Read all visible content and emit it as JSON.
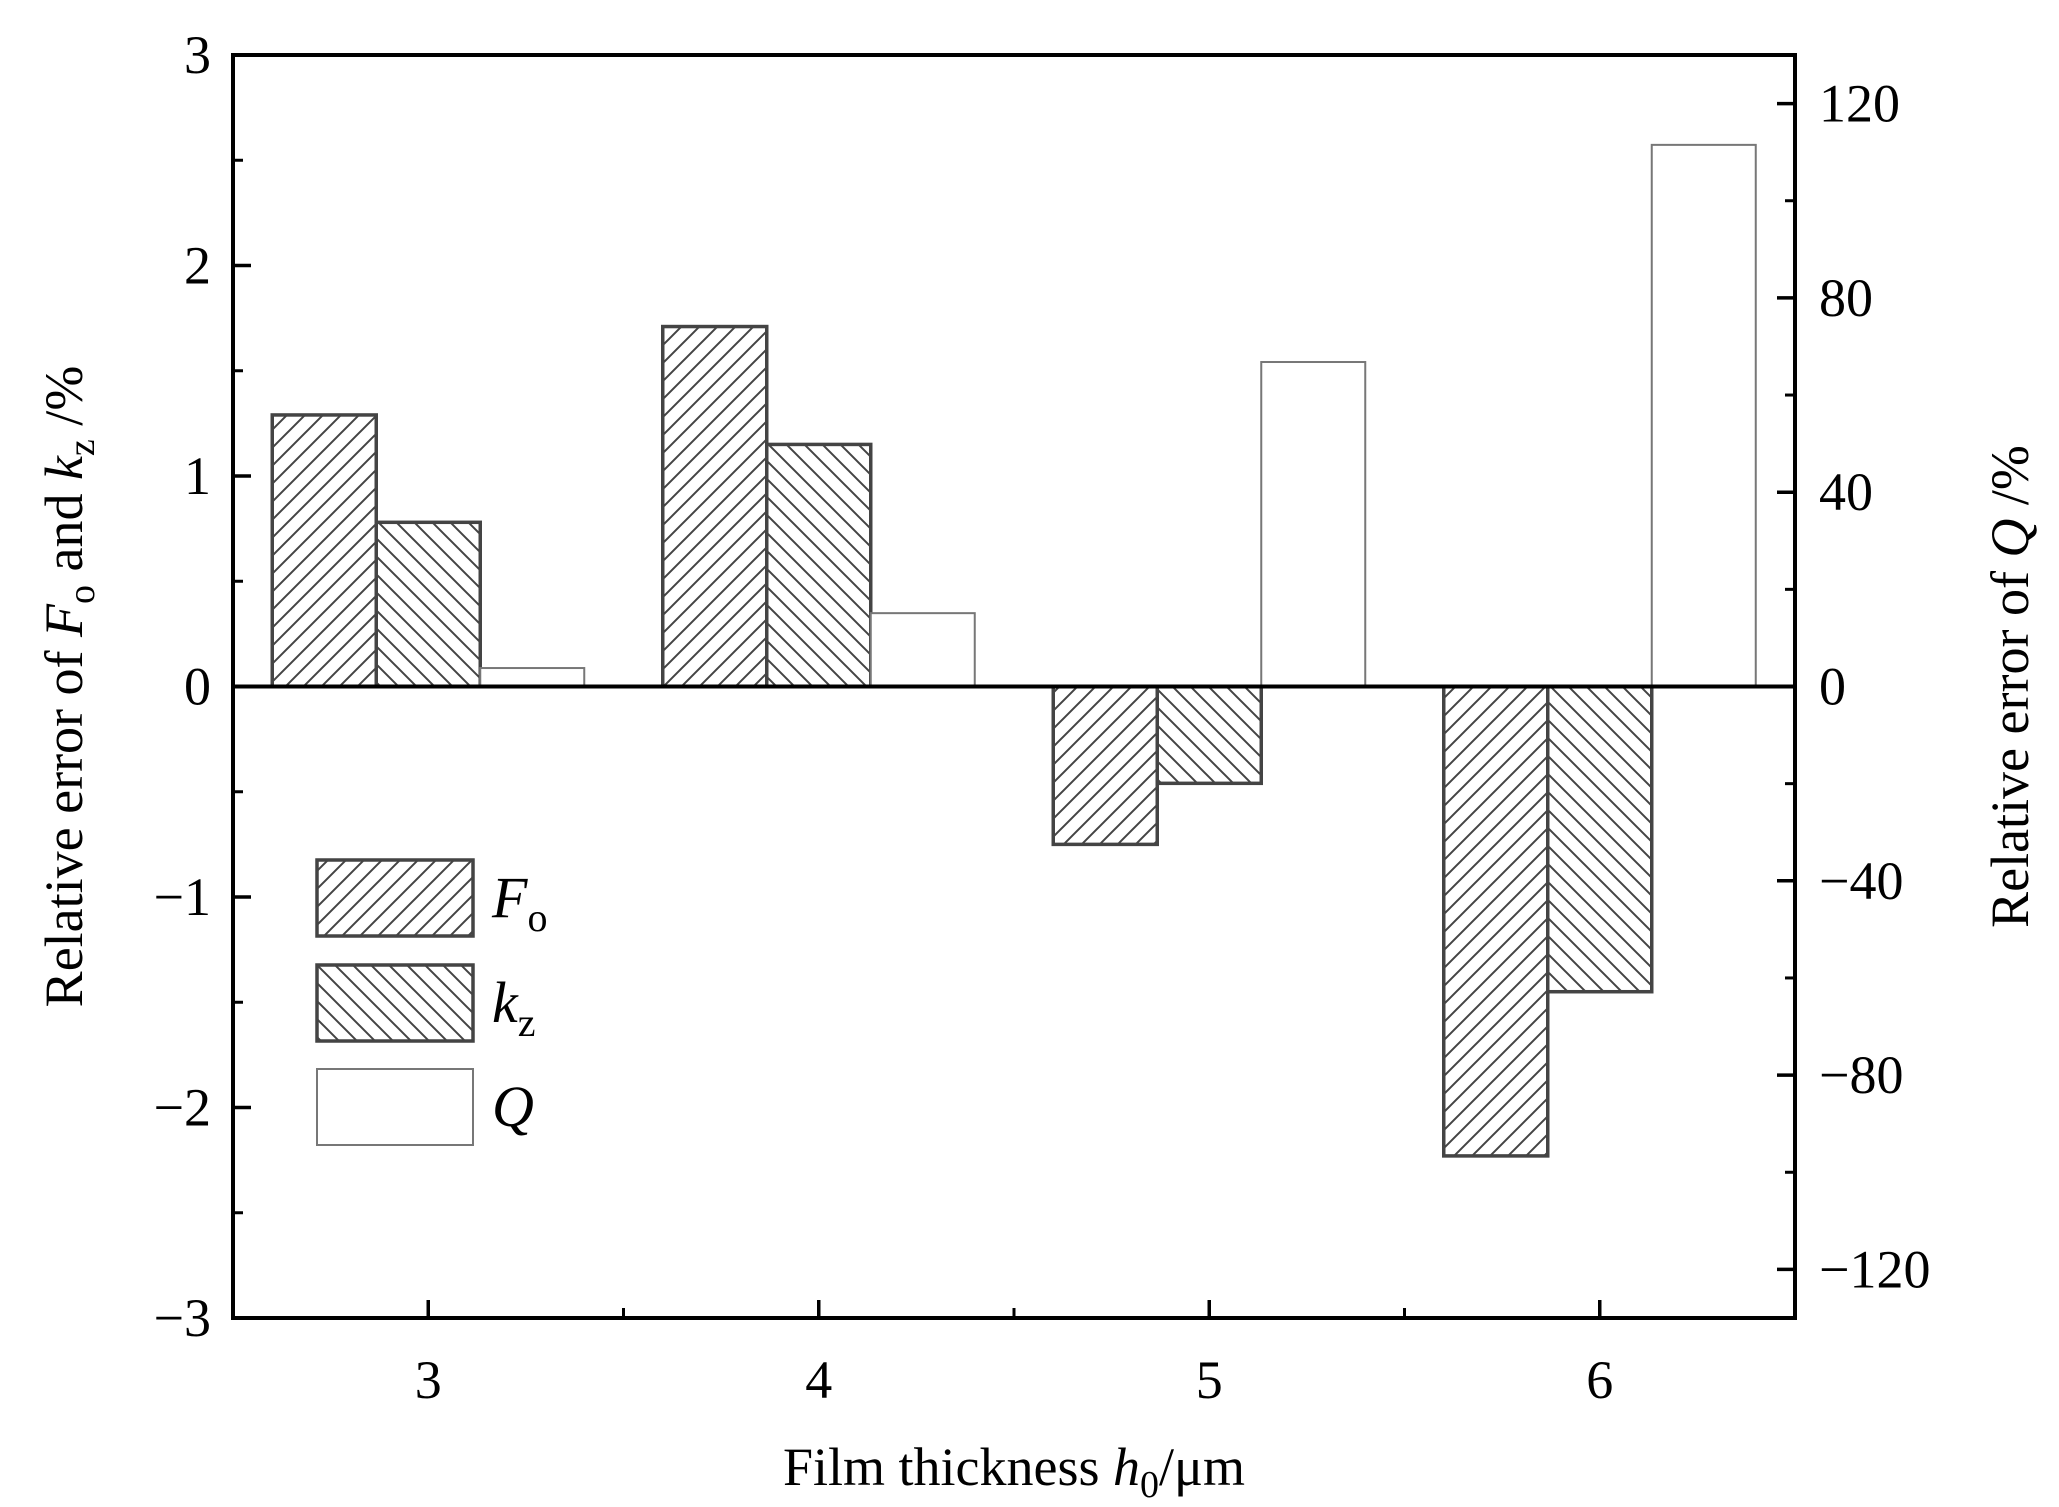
{
  "chart_data": {
    "type": "bar",
    "categories": [
      "3",
      "4",
      "5",
      "6"
    ],
    "x_values": [
      3,
      4,
      5,
      6
    ],
    "xlim": [
      2.5,
      6.5
    ],
    "ylim_left": [
      -3,
      3
    ],
    "ylim_right": [
      -130,
      130
    ],
    "yticks_left": [
      -3,
      -2,
      -1,
      0,
      1,
      2,
      3
    ],
    "yticks_left_labels": [
      "−3",
      "−2",
      "−1",
      "0",
      "1",
      "2",
      "3"
    ],
    "yticks_right": [
      -120,
      -80,
      -40,
      0,
      40,
      80,
      120
    ],
    "yticks_right_labels": [
      "−120",
      "−80",
      "−40",
      "0",
      "40",
      "80",
      "120"
    ],
    "xlabel": {
      "prefix": "Film thickness ",
      "var": "h",
      "sub": "0",
      "suffix": "/μm"
    },
    "ylabel_left": {
      "prefix": "Relative error of ",
      "var1": "F",
      "sub1": "o",
      "mid": " and ",
      "var2": "k",
      "sub2": "z",
      "suffix": " /%"
    },
    "ylabel_right": {
      "prefix": "Relative error of ",
      "var": "Q",
      "suffix": " /%"
    },
    "legend_position": "bottom-left",
    "series": [
      {
        "name": "F",
        "name_sub": "o",
        "axis": "left",
        "pattern": "hatch-forward",
        "values": [
          1.29,
          1.71,
          -0.75,
          -2.23
        ]
      },
      {
        "name": "k",
        "name_sub": "z",
        "axis": "left",
        "pattern": "hatch-back",
        "values": [
          0.78,
          1.15,
          -0.46,
          -1.45
        ]
      },
      {
        "name": "Q",
        "name_sub": "",
        "axis": "right",
        "pattern": "none",
        "values": [
          3.8,
          15.1,
          66.8,
          111.5
        ]
      }
    ]
  }
}
